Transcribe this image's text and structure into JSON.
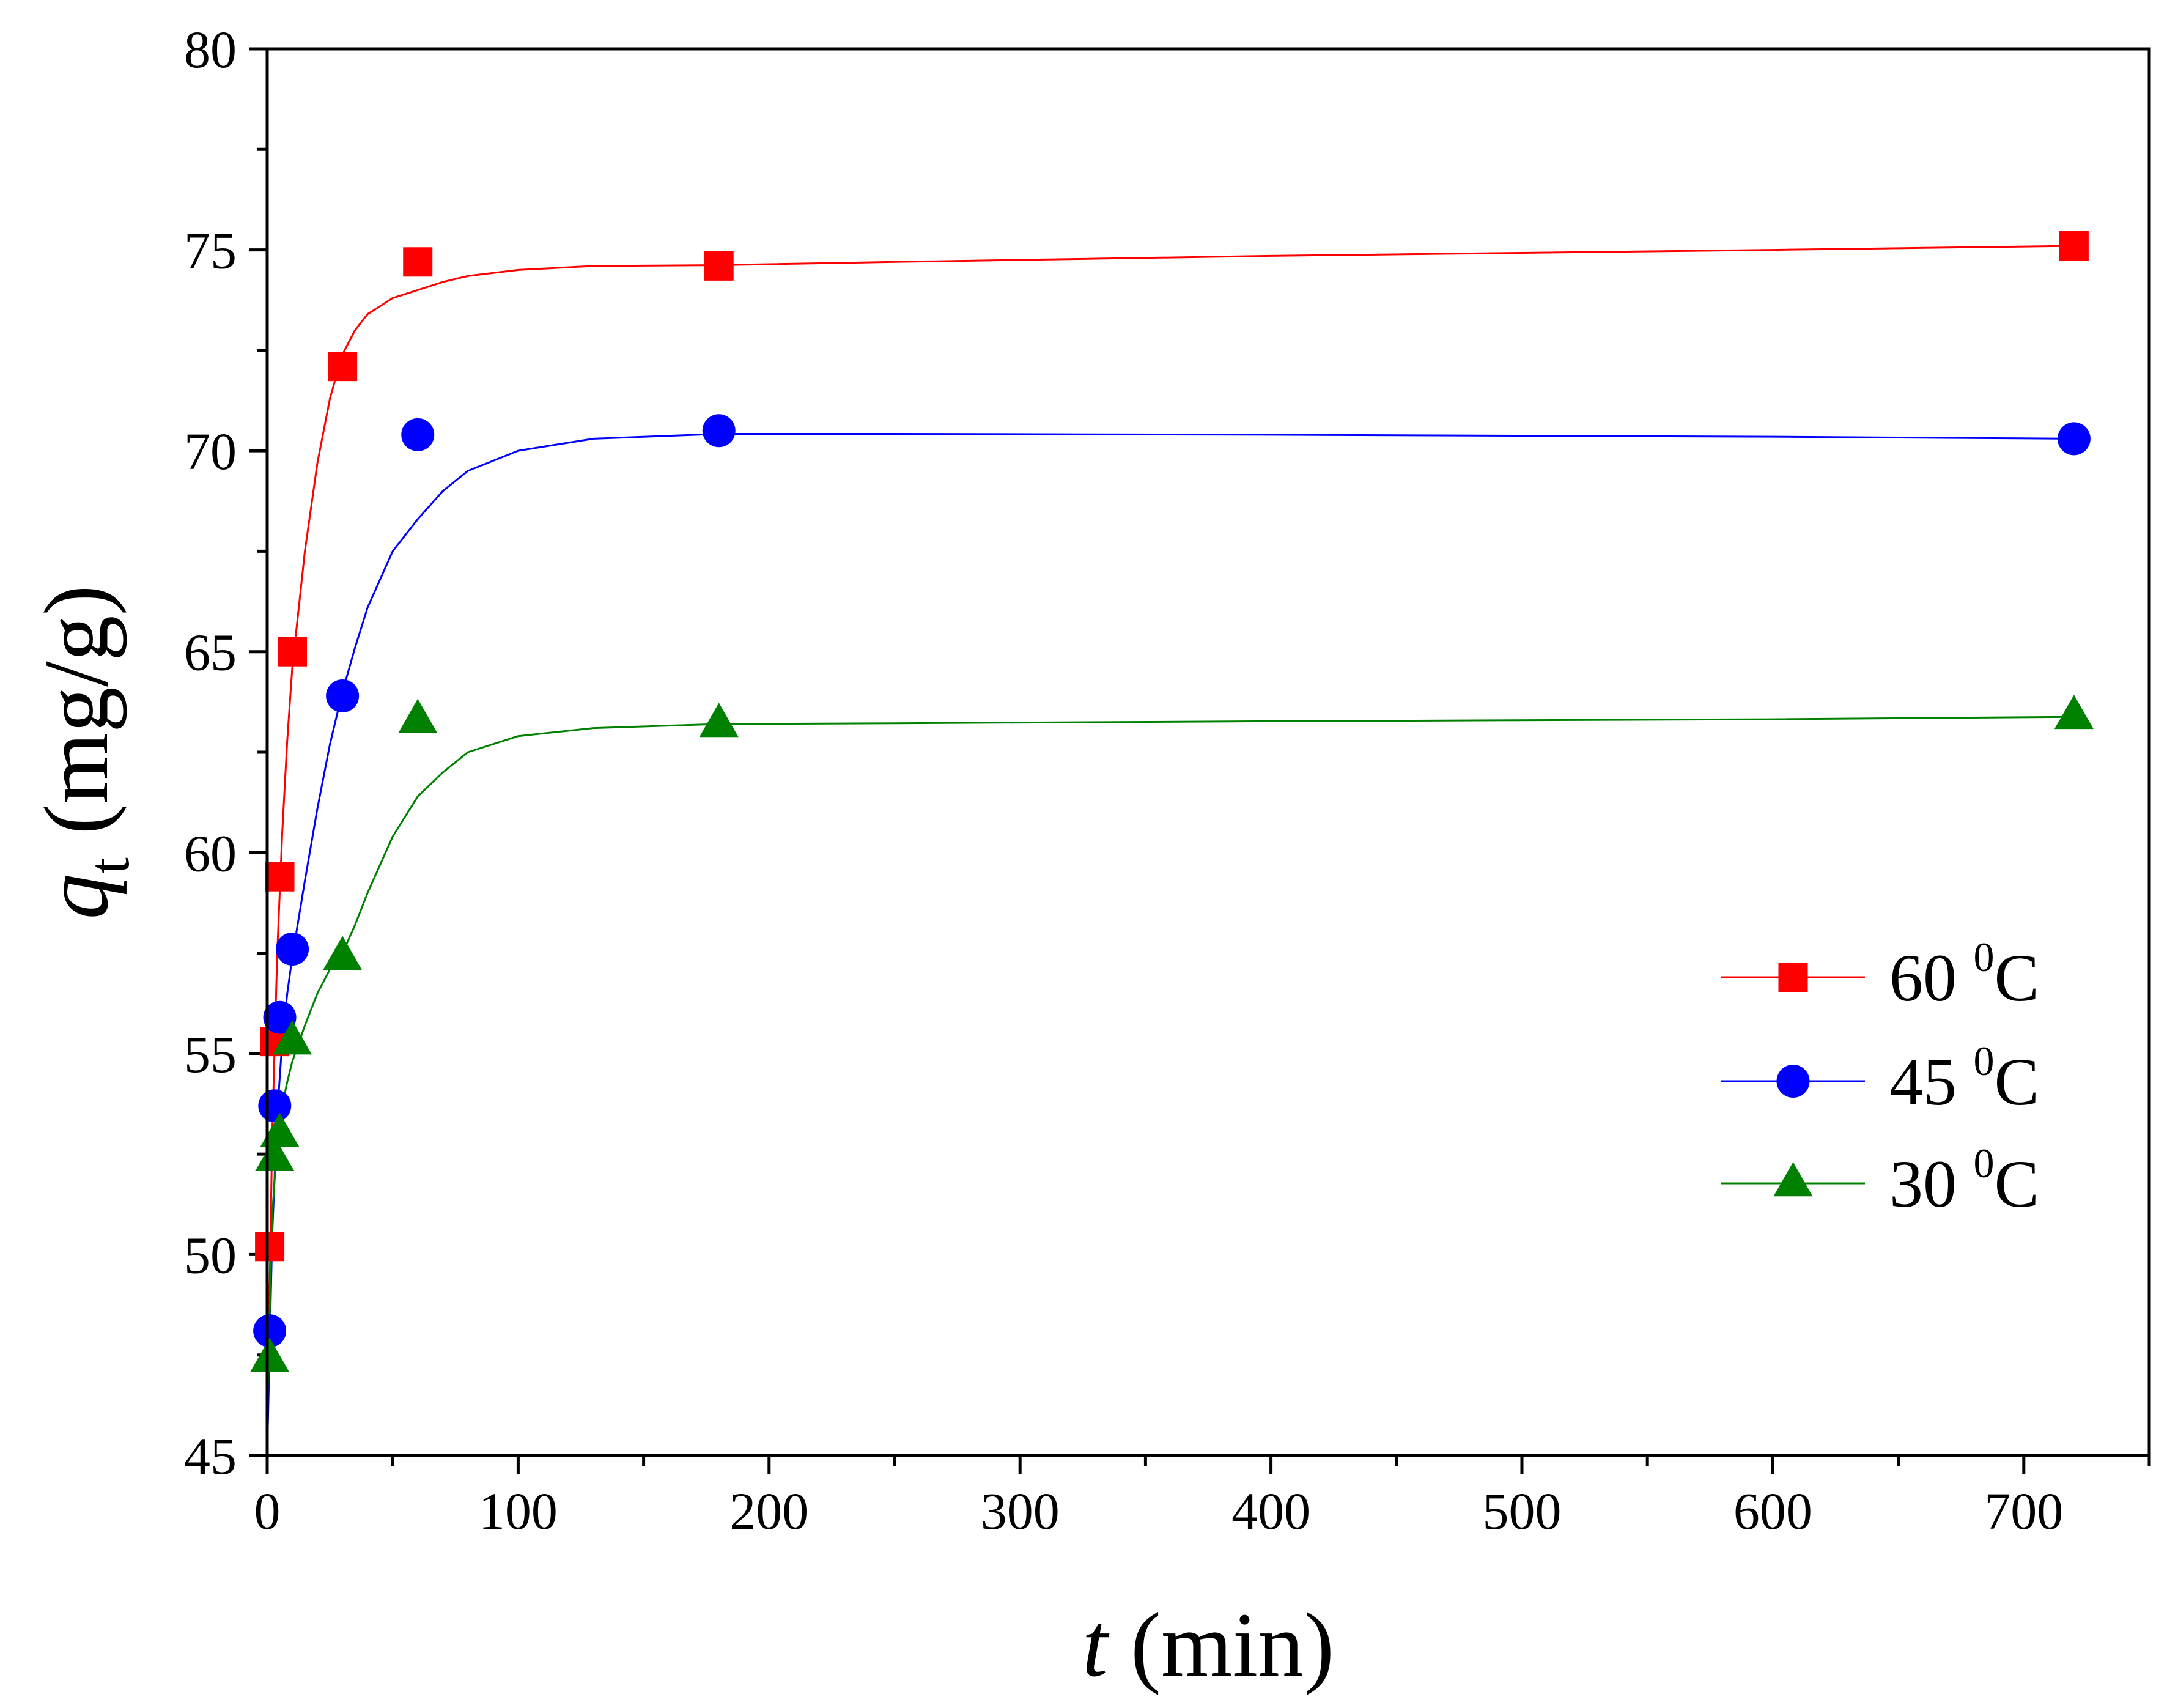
{
  "chart_data": {
    "type": "scatter",
    "xlabel_var": "t",
    "xlabel_unit": " (min)",
    "ylabel_var": "q",
    "ylabel_sub": "t",
    "ylabel_unit": " (mg/g)",
    "xlim": [
      0,
      750
    ],
    "ylim": [
      45,
      80
    ],
    "x_major_ticks": [
      0,
      100,
      200,
      300,
      400,
      500,
      600,
      700
    ],
    "x_minor_ticks": [
      50,
      150,
      250,
      350,
      450,
      550,
      650,
      750
    ],
    "y_major_ticks": [
      45,
      50,
      55,
      60,
      65,
      70,
      75,
      80
    ],
    "y_minor_ticks": [
      47.5,
      52.5,
      57.5,
      62.5,
      67.5,
      72.5,
      77.5
    ],
    "legend_position": "right",
    "series": [
      {
        "name": "60 °C",
        "label_num": "60",
        "label_sup": "0",
        "label_unit": "C",
        "color": "#ff0000",
        "marker": "square",
        "x": [
          1,
          3,
          5,
          10,
          30,
          60,
          180,
          720
        ],
        "y": [
          50.2,
          55.3,
          59.4,
          65.0,
          72.1,
          74.7,
          74.6,
          75.1
        ],
        "fit_x": [
          0,
          2,
          4,
          6,
          8,
          10,
          15,
          20,
          25,
          30,
          35,
          40,
          50,
          60,
          70,
          80,
          100,
          130,
          180,
          250,
          400,
          600,
          720
        ],
        "fit_y": [
          45.5,
          53.0,
          57.5,
          60.5,
          62.8,
          64.6,
          67.5,
          69.7,
          71.3,
          72.4,
          73.0,
          73.4,
          73.8,
          74.0,
          74.2,
          74.35,
          74.5,
          74.6,
          74.62,
          74.7,
          74.85,
          75.0,
          75.1
        ]
      },
      {
        "name": "45 °C",
        "label_num": "45",
        "label_sup": "0",
        "label_unit": "C",
        "color": "#0000ff",
        "marker": "circle",
        "x": [
          1,
          3,
          5,
          10,
          30,
          60,
          180,
          720
        ],
        "y": [
          48.1,
          53.7,
          55.9,
          57.6,
          63.9,
          70.4,
          70.5,
          70.3
        ],
        "fit_x": [
          0,
          2,
          4,
          6,
          8,
          10,
          15,
          20,
          25,
          30,
          35,
          40,
          50,
          60,
          70,
          80,
          100,
          130,
          180,
          250,
          400,
          600,
          720
        ],
        "fit_y": [
          45.0,
          50.5,
          53.5,
          55.3,
          56.5,
          57.4,
          59.3,
          61.1,
          62.7,
          64.0,
          65.1,
          66.1,
          67.5,
          68.3,
          69.0,
          69.5,
          70.0,
          70.3,
          70.42,
          70.42,
          70.4,
          70.35,
          70.3
        ]
      },
      {
        "name": "30 °C",
        "label_num": "30",
        "label_sup": "0",
        "label_unit": "C",
        "color": "#008000",
        "marker": "triangle",
        "x": [
          1,
          3,
          5,
          10,
          30,
          60,
          180,
          720
        ],
        "y": [
          47.4,
          52.4,
          53.0,
          55.3,
          57.4,
          63.3,
          63.2,
          63.4
        ],
        "fit_x": [
          0,
          2,
          4,
          6,
          8,
          10,
          15,
          20,
          25,
          30,
          35,
          40,
          50,
          60,
          70,
          80,
          100,
          130,
          180,
          250,
          400,
          600,
          720
        ],
        "fit_y": [
          46.0,
          51.0,
          52.8,
          53.7,
          54.3,
          54.8,
          55.7,
          56.5,
          57.1,
          57.5,
          58.2,
          59.0,
          60.4,
          61.4,
          62.0,
          62.5,
          62.9,
          63.1,
          63.2,
          63.22,
          63.27,
          63.32,
          63.38
        ]
      }
    ]
  }
}
